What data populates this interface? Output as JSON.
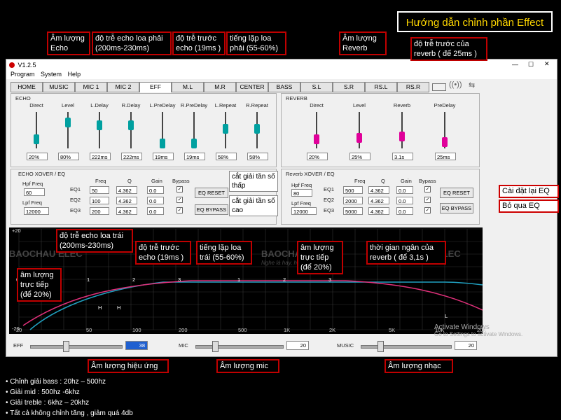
{
  "header": {
    "title": "Hướng dẫn chỉnh phần Effect"
  },
  "window": {
    "version": "V1.2.5",
    "menu": [
      "Program",
      "System",
      "Help"
    ]
  },
  "tabs": [
    "HOME",
    "MUSIC",
    "MIC 1",
    "MIC 2",
    "EFF",
    "M.L",
    "M.R",
    "CENTER",
    "BASS",
    "S.L",
    "S.R",
    "RS.L",
    "RS.R"
  ],
  "echo": {
    "title": "ECHO",
    "sliders": [
      {
        "label": "Direct",
        "value": "20%",
        "color": "#00a0a0",
        "level": 0.2
      },
      {
        "label": "Level",
        "value": "80%",
        "color": "#00a0a0",
        "level": 0.8
      },
      {
        "label": "L.Delay",
        "value": "222ms",
        "color": "#00a0a0",
        "level": 0.7
      },
      {
        "label": "R.Delay",
        "value": "222ms",
        "color": "#00a0a0",
        "level": 0.7
      },
      {
        "label": "L.PreDelay",
        "value": "19ms",
        "color": "#00a0a0",
        "level": 0.05
      },
      {
        "label": "R.PreDelay",
        "value": "19ms",
        "color": "#00a0a0",
        "level": 0.05
      },
      {
        "label": "L.Repeat",
        "value": "58%",
        "color": "#00a0a0",
        "level": 0.58
      },
      {
        "label": "R.Repeat",
        "value": "58%",
        "color": "#00a0a0",
        "level": 0.58
      }
    ],
    "xover": {
      "title": "ECHO  XOVER / EQ",
      "hpf_label": "Hpf Freq",
      "hpf": "60",
      "lpf_label": "Lpf Freq",
      "lpf": "12000",
      "cols": [
        "Freq",
        "Q",
        "Gain",
        "Bypass"
      ],
      "rows": [
        {
          "name": "EQ1",
          "freq": "50",
          "q": "4.362",
          "gain": "0.0"
        },
        {
          "name": "EQ2",
          "freq": "100",
          "q": "4.362",
          "gain": "0.0"
        },
        {
          "name": "EQ3",
          "freq": "200",
          "q": "4.362",
          "gain": "0.0"
        }
      ],
      "reset": "EQ RESET",
      "bypass": "EQ BYPASS"
    }
  },
  "reverb": {
    "title": "REVERB",
    "sliders": [
      {
        "label": "Direct",
        "value": "20%",
        "color": "#e0009a",
        "level": 0.2
      },
      {
        "label": "Level",
        "value": "25%",
        "color": "#e0009a",
        "level": 0.25
      },
      {
        "label": "Reverb",
        "value": "3.1s",
        "color": "#e0009a",
        "level": 0.3
      },
      {
        "label": "PreDelay",
        "value": "25ms",
        "color": "#e0009a",
        "level": 0.1
      }
    ],
    "xover": {
      "title": "Reverb  XOVER / EQ",
      "hpf_label": "Hpf Freq",
      "hpf": "80",
      "lpf_label": "Lpf Freq",
      "lpf": "12000",
      "cols": [
        "Freq",
        "Q",
        "Gain",
        "Bypass"
      ],
      "rows": [
        {
          "name": "EQ1",
          "freq": "500",
          "q": "4.362",
          "gain": "0.0"
        },
        {
          "name": "EQ2",
          "freq": "2000",
          "q": "4.362",
          "gain": "0.0"
        },
        {
          "name": "EQ3",
          "freq": "5000",
          "q": "4.362",
          "gain": "0.0"
        }
      ],
      "reset": "EQ RESET",
      "bypass": "EQ BYPASS"
    }
  },
  "graph": {
    "y_top": "+20",
    "y_zero": "0",
    "y_bottom": "-20",
    "x_ticks": [
      "20",
      "50",
      "100",
      "200",
      "500",
      "1K",
      "2K",
      "5K",
      "10K",
      "20K"
    ],
    "markers": [
      "1",
      "2",
      "3",
      "1",
      "2",
      "3"
    ],
    "low_marks": [
      "H",
      "H",
      "L"
    ],
    "watermark": "BAOCHAU ELEC",
    "watermark_sub": "Nghe là hay, hát là mê",
    "activate": "Activate Windows",
    "activate_sub": "Go to Settings to activate Windows."
  },
  "bottom": {
    "eff_label": "EFF",
    "eff_value": "38",
    "eff_level": 0.38,
    "mic_label": "MIC",
    "mic_value": "20",
    "mic_level": 0.2,
    "music_label": "MUSIC",
    "music_value": "20",
    "music_level": 0.2
  },
  "callouts": {
    "echo_vol": "Âm lượng Echo",
    "echo_delay_r": "độ trễ echo loa phải (200ms-230ms)",
    "pre_r": "độ trễ trước echo (19ms )",
    "repeat_r": "tiếng lặp loa phải (55-60%)",
    "reverb_vol": "Âm lượng Reverb",
    "pre_reverb": "độ trễ trước của reverb ( để 25ms )",
    "cut_low": "cắt giải tần số thấp",
    "cut_high": "cắt giải tần số cao",
    "eq_reset": "Cài đặt lại EQ",
    "eq_bypass": "Bỏ qua EQ",
    "echo_delay_l": "độ trễ echo loa trái (200ms-230ms)",
    "pre_l": "độ trễ trước echo (19ms )",
    "repeat_l": "tiếng lặp loa trái (55-60%)",
    "direct_rev": "âm lượng trực tiếp (để 20%)",
    "reverb_time": "thời gian ngân của reverb ( để 3,1s )",
    "direct_echo": "âm lượng trực tiếp (để 20%)",
    "eff_vol": "Âm lượng hiệu ứng",
    "mic_vol": "Âm lượng mic",
    "music_vol": "Âm lượng nhạc"
  },
  "notes": [
    "• Chỉnh giải bass : 20hz – 500hz",
    "• Giải mid : 500hz -6khz",
    "• Giải treble : 6khz – 20khz",
    "• Tất cả không chỉnh tăng , giảm quá 4db"
  ]
}
